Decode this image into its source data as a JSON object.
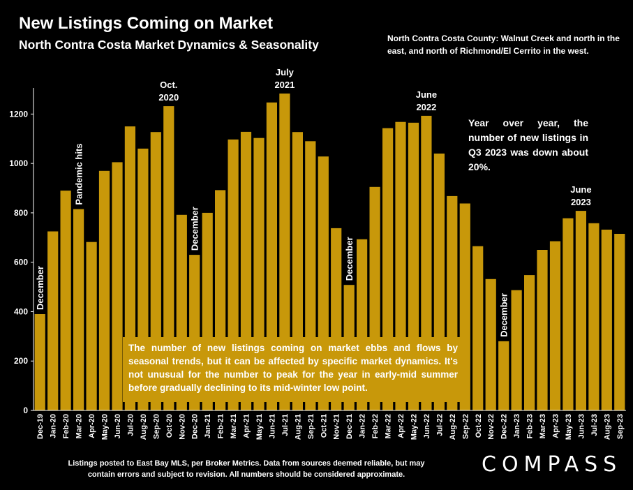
{
  "header": {
    "title": "New Listings Coming on Market",
    "subtitle": "North Contra Costa Market Dynamics & Seasonality",
    "region_note": "North Contra Costa County: Walnut Creek and north in the east, and north of Richmond/El Cerrito in the west."
  },
  "yoy_note": "Year over year, the number of new listings in Q3 2023 was down about 20%.",
  "callout": "The number of new listings coming on market ebbs and flows by seasonal trends, but it can be affected by specific market dynamics. It's not unusual for the number to peak for the year in early-mid summer before gradually declining to its mid-winter low point.",
  "footer": "Listings posted to East Bay MLS, per Broker Metrics.  Data from sources deemed reliable, but may contain errors and subject to revision. All numbers should be considered approximate.",
  "logo": "COMPASS",
  "colors": {
    "bar": "#c8980a",
    "background": "#000000",
    "text": "#ffffff",
    "axis": "#ffffff"
  },
  "chart_data": {
    "type": "bar",
    "categories": [
      "Dec-19",
      "Jan-20",
      "Feb-20",
      "Mar-20",
      "Apr-20",
      "May-20",
      "Jun-20",
      "Jul-20",
      "Aug-20",
      "Sep-20",
      "Oct-20",
      "Nov-20",
      "Dec-20",
      "Jan-21",
      "Feb-21",
      "Mar-21",
      "Apr-21",
      "May-21",
      "Jun-21",
      "Jul-21",
      "Aug-21",
      "Sep-21",
      "Oct-21",
      "Nov-21",
      "Dec-21",
      "Jan-22",
      "Feb-22",
      "Mar-22",
      "Apr-22",
      "May-22",
      "Jun-22",
      "Jul-22",
      "Aug-22",
      "Sep-22",
      "Oct-22",
      "Nov-22",
      "Dec-22",
      "Jan-23",
      "Feb-23",
      "Mar-23",
      "Apr-23",
      "May-23",
      "Jun-23",
      "Jul-23",
      "Aug-23",
      "Sep-23"
    ],
    "values": [
      390,
      725,
      890,
      815,
      682,
      970,
      1005,
      1150,
      1060,
      1127,
      1232,
      792,
      630,
      800,
      892,
      1097,
      1128,
      1103,
      1247,
      1283,
      1127,
      1090,
      1028,
      738,
      508,
      693,
      905,
      1143,
      1168,
      1165,
      1193,
      1040,
      868,
      838,
      665,
      532,
      280,
      487,
      548,
      650,
      685,
      778,
      808,
      758,
      732,
      715
    ],
    "ylim": [
      0,
      1300
    ],
    "yticks": [
      0,
      200,
      400,
      600,
      800,
      1000,
      1200
    ],
    "grid": false,
    "annotations": [
      {
        "index": 0,
        "text": "December",
        "style": "vertical"
      },
      {
        "index": 3,
        "text": "Pandemic hits",
        "style": "vertical"
      },
      {
        "index": 10,
        "lines": [
          "Oct.",
          "2020"
        ],
        "style": "horizontal"
      },
      {
        "index": 12,
        "text": "December",
        "style": "vertical"
      },
      {
        "index": 19,
        "lines": [
          "July",
          "2021"
        ],
        "style": "horizontal"
      },
      {
        "index": 24,
        "text": "December",
        "style": "vertical"
      },
      {
        "index": 30,
        "lines": [
          "June",
          "2022"
        ],
        "style": "horizontal"
      },
      {
        "index": 36,
        "text": "December",
        "style": "vertical"
      },
      {
        "index": 42,
        "lines": [
          "June",
          "2023"
        ],
        "style": "horizontal"
      }
    ]
  }
}
